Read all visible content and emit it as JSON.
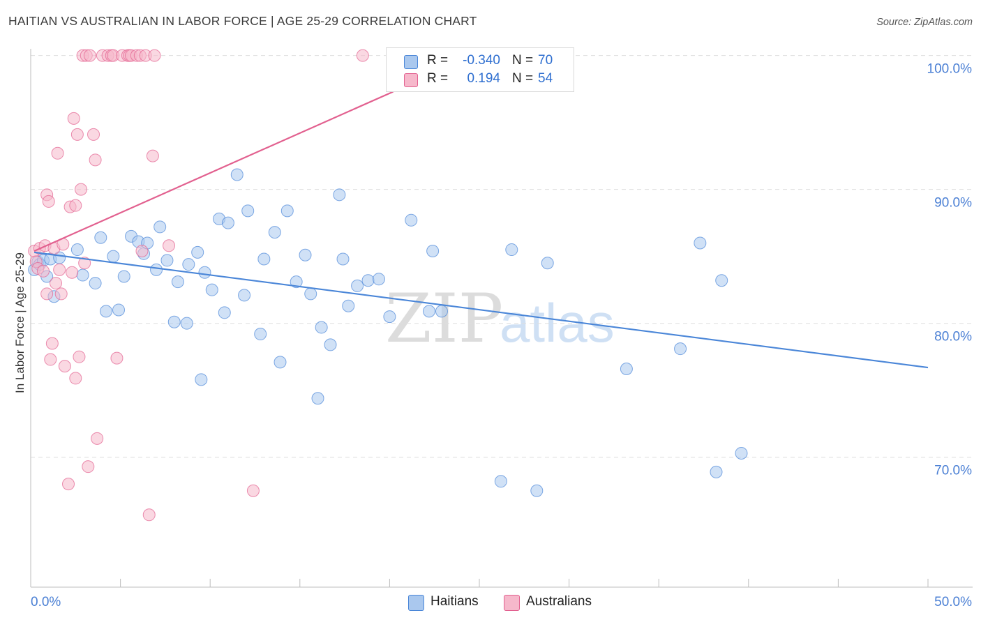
{
  "header": {
    "title": "HAITIAN VS AUSTRALIAN IN LABOR FORCE | AGE 25-29 CORRELATION CHART",
    "source": "Source: ZipAtlas.com"
  },
  "watermark": {
    "zip": "ZIP",
    "atlas": "atlas"
  },
  "stats": [
    {
      "r_label": "R =",
      "r_value": "-0.340",
      "n_label": "N =",
      "n_value": "70",
      "color": "#aac8ee"
    },
    {
      "r_label": "R =",
      "r_value": "0.194",
      "n_label": "N =",
      "n_value": "54",
      "color": "#f6b8cb"
    }
  ],
  "legend": [
    {
      "label": "Haitians",
      "color": "#aac8ee"
    },
    {
      "label": "Australians",
      "color": "#f6b8cb"
    }
  ],
  "chart_data": {
    "type": "scatter",
    "title": "HAITIAN VS AUSTRALIAN IN LABOR FORCE | AGE 25-29 CORRELATION CHART",
    "xlabel": "",
    "ylabel": "In Labor Force | Age 25-29",
    "xlim": [
      0,
      50
    ],
    "ylim": [
      60.3,
      100.5
    ],
    "x_tick_labels": [
      {
        "value": 0,
        "label": "0.0%"
      },
      {
        "value": 50,
        "label": "50.0%"
      }
    ],
    "y_ticks": [
      {
        "value": 100,
        "label": "100.0%"
      },
      {
        "value": 90,
        "label": "90.0%"
      },
      {
        "value": 80,
        "label": "80.0%"
      },
      {
        "value": 70,
        "label": "70.0%"
      }
    ],
    "grid": true,
    "legend_position": "bottom-center",
    "series": [
      {
        "name": "Haitians",
        "color": "#4a86d8",
        "fill": "#aac8ee",
        "trend": {
          "x": [
            0.2,
            50
          ],
          "y": [
            85.3,
            76.7
          ]
        },
        "points": [
          [
            0.2,
            84.0
          ],
          [
            0.4,
            84.6
          ],
          [
            0.5,
            84.4
          ],
          [
            0.7,
            84.7
          ],
          [
            0.9,
            83.5
          ],
          [
            1.1,
            84.8
          ],
          [
            1.3,
            82.0
          ],
          [
            1.6,
            84.9
          ],
          [
            2.6,
            85.5
          ],
          [
            2.9,
            83.6
          ],
          [
            3.6,
            83.0
          ],
          [
            3.9,
            86.4
          ],
          [
            4.2,
            80.9
          ],
          [
            4.6,
            85.0
          ],
          [
            4.9,
            81.0
          ],
          [
            5.2,
            83.5
          ],
          [
            5.6,
            86.5
          ],
          [
            6.0,
            86.1
          ],
          [
            6.3,
            85.2
          ],
          [
            6.5,
            86.0
          ],
          [
            7.0,
            84.0
          ],
          [
            7.2,
            87.2
          ],
          [
            7.6,
            84.7
          ],
          [
            8.0,
            80.1
          ],
          [
            8.2,
            83.1
          ],
          [
            8.7,
            80.0
          ],
          [
            8.8,
            84.4
          ],
          [
            9.3,
            85.3
          ],
          [
            9.5,
            75.8
          ],
          [
            9.7,
            83.8
          ],
          [
            10.1,
            82.5
          ],
          [
            10.5,
            87.8
          ],
          [
            10.8,
            80.8
          ],
          [
            11.0,
            87.5
          ],
          [
            11.5,
            91.1
          ],
          [
            11.9,
            82.1
          ],
          [
            12.1,
            88.4
          ],
          [
            12.8,
            79.2
          ],
          [
            13.0,
            84.8
          ],
          [
            13.6,
            86.8
          ],
          [
            13.9,
            77.1
          ],
          [
            14.3,
            88.4
          ],
          [
            14.8,
            83.1
          ],
          [
            15.3,
            85.1
          ],
          [
            15.6,
            82.2
          ],
          [
            16.0,
            74.4
          ],
          [
            16.2,
            79.7
          ],
          [
            16.7,
            78.4
          ],
          [
            17.2,
            89.6
          ],
          [
            17.4,
            84.8
          ],
          [
            17.7,
            81.3
          ],
          [
            18.2,
            82.8
          ],
          [
            18.8,
            83.2
          ],
          [
            19.4,
            83.3
          ],
          [
            20.0,
            80.5
          ],
          [
            21.2,
            87.7
          ],
          [
            22.2,
            80.9
          ],
          [
            22.4,
            85.4
          ],
          [
            22.9,
            80.9
          ],
          [
            26.2,
            68.2
          ],
          [
            26.8,
            85.5
          ],
          [
            28.2,
            67.5
          ],
          [
            28.8,
            84.5
          ],
          [
            29.2,
            100.0
          ],
          [
            33.2,
            76.6
          ],
          [
            36.2,
            78.1
          ],
          [
            37.3,
            86.0
          ],
          [
            38.2,
            68.9
          ],
          [
            38.5,
            83.2
          ],
          [
            39.6,
            70.3
          ]
        ]
      },
      {
        "name": "Australians",
        "color": "#e2608f",
        "fill": "#f6b8cb",
        "trend": {
          "x": [
            0.2,
            20.2
          ],
          "y": [
            85.4,
            97.3
          ]
        },
        "points": [
          [
            0.2,
            85.4
          ],
          [
            0.3,
            84.6
          ],
          [
            0.4,
            84.1
          ],
          [
            0.5,
            85.6
          ],
          [
            0.7,
            83.9
          ],
          [
            0.8,
            85.8
          ],
          [
            0.9,
            89.6
          ],
          [
            0.9,
            82.2
          ],
          [
            1.0,
            89.1
          ],
          [
            1.1,
            77.3
          ],
          [
            1.2,
            78.5
          ],
          [
            1.3,
            85.6
          ],
          [
            1.4,
            83.0
          ],
          [
            1.5,
            92.7
          ],
          [
            1.6,
            84.0
          ],
          [
            1.7,
            82.2
          ],
          [
            1.8,
            85.9
          ],
          [
            1.9,
            76.8
          ],
          [
            2.1,
            68.0
          ],
          [
            2.2,
            88.7
          ],
          [
            2.3,
            83.8
          ],
          [
            2.4,
            95.3
          ],
          [
            2.5,
            75.9
          ],
          [
            2.5,
            88.8
          ],
          [
            2.6,
            94.1
          ],
          [
            2.7,
            77.5
          ],
          [
            2.8,
            90.0
          ],
          [
            2.9,
            100.0
          ],
          [
            3.0,
            84.5
          ],
          [
            3.1,
            100.0
          ],
          [
            3.2,
            69.3
          ],
          [
            3.3,
            100.0
          ],
          [
            3.5,
            94.1
          ],
          [
            3.6,
            92.2
          ],
          [
            3.7,
            71.4
          ],
          [
            4.0,
            100.0
          ],
          [
            4.3,
            100.0
          ],
          [
            4.5,
            100.0
          ],
          [
            4.6,
            100.0
          ],
          [
            4.8,
            77.4
          ],
          [
            5.1,
            100.0
          ],
          [
            5.4,
            100.0
          ],
          [
            5.5,
            100.0
          ],
          [
            5.6,
            100.0
          ],
          [
            5.9,
            100.0
          ],
          [
            6.1,
            100.0
          ],
          [
            6.2,
            85.4
          ],
          [
            6.4,
            100.0
          ],
          [
            6.6,
            65.7
          ],
          [
            6.8,
            92.5
          ],
          [
            6.9,
            100.0
          ],
          [
            7.7,
            85.8
          ],
          [
            12.4,
            67.5
          ],
          [
            18.5,
            100.0
          ]
        ]
      }
    ]
  }
}
